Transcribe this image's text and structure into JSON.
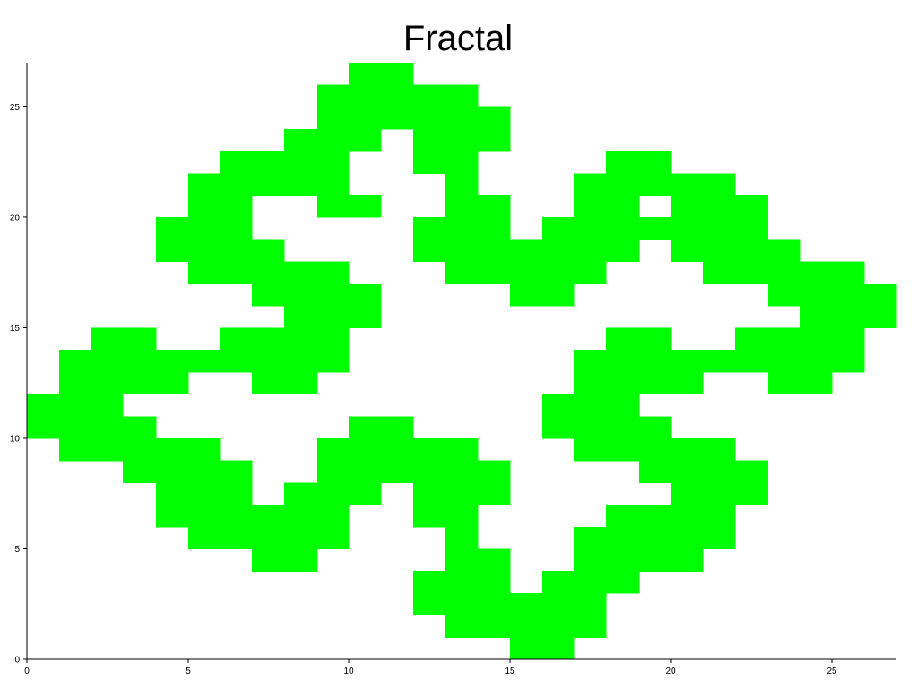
{
  "chart_data": {
    "type": "heatmap",
    "title": "Fractal",
    "xlabel": "",
    "ylabel": "",
    "xlim": [
      0,
      27
    ],
    "ylim": [
      0,
      27
    ],
    "x_ticks": [
      0,
      5,
      10,
      15,
      20,
      25
    ],
    "y_ticks": [
      0,
      5,
      10,
      15,
      20,
      25
    ],
    "x_tick_labels": [
      "0",
      "5",
      "10",
      "15",
      "20",
      "25"
    ],
    "y_tick_labels": [
      "0",
      "5",
      "10",
      "15",
      "20",
      "25"
    ],
    "grid": false,
    "fill_color": "#00ff00",
    "filled_cells": [
      [
        15,
        0
      ],
      [
        16,
        0
      ],
      [
        13,
        1
      ],
      [
        14,
        1
      ],
      [
        15,
        1
      ],
      [
        16,
        1
      ],
      [
        17,
        1
      ],
      [
        12,
        2
      ],
      [
        13,
        2
      ],
      [
        14,
        2
      ],
      [
        15,
        2
      ],
      [
        16,
        2
      ],
      [
        17,
        2
      ],
      [
        12,
        3
      ],
      [
        13,
        3
      ],
      [
        14,
        3
      ],
      [
        16,
        3
      ],
      [
        17,
        3
      ],
      [
        18,
        3
      ],
      [
        7,
        4
      ],
      [
        8,
        4
      ],
      [
        13,
        4
      ],
      [
        14,
        4
      ],
      [
        17,
        4
      ],
      [
        18,
        4
      ],
      [
        19,
        4
      ],
      [
        20,
        4
      ],
      [
        5,
        5
      ],
      [
        6,
        5
      ],
      [
        7,
        5
      ],
      [
        8,
        5
      ],
      [
        9,
        5
      ],
      [
        13,
        5
      ],
      [
        17,
        5
      ],
      [
        18,
        5
      ],
      [
        19,
        5
      ],
      [
        20,
        5
      ],
      [
        21,
        5
      ],
      [
        4,
        6
      ],
      [
        5,
        6
      ],
      [
        6,
        6
      ],
      [
        7,
        6
      ],
      [
        8,
        6
      ],
      [
        9,
        6
      ],
      [
        12,
        6
      ],
      [
        13,
        6
      ],
      [
        18,
        6
      ],
      [
        19,
        6
      ],
      [
        20,
        6
      ],
      [
        21,
        6
      ],
      [
        4,
        7
      ],
      [
        5,
        7
      ],
      [
        6,
        7
      ],
      [
        8,
        7
      ],
      [
        9,
        7
      ],
      [
        10,
        7
      ],
      [
        12,
        7
      ],
      [
        13,
        7
      ],
      [
        14,
        7
      ],
      [
        20,
        7
      ],
      [
        21,
        7
      ],
      [
        22,
        7
      ],
      [
        3,
        8
      ],
      [
        4,
        8
      ],
      [
        5,
        8
      ],
      [
        6,
        8
      ],
      [
        9,
        8
      ],
      [
        10,
        8
      ],
      [
        11,
        8
      ],
      [
        12,
        8
      ],
      [
        13,
        8
      ],
      [
        14,
        8
      ],
      [
        19,
        8
      ],
      [
        20,
        8
      ],
      [
        21,
        8
      ],
      [
        22,
        8
      ],
      [
        1,
        9
      ],
      [
        2,
        9
      ],
      [
        3,
        9
      ],
      [
        4,
        9
      ],
      [
        5,
        9
      ],
      [
        9,
        9
      ],
      [
        10,
        9
      ],
      [
        11,
        9
      ],
      [
        12,
        9
      ],
      [
        13,
        9
      ],
      [
        17,
        9
      ],
      [
        18,
        9
      ],
      [
        19,
        9
      ],
      [
        20,
        9
      ],
      [
        21,
        9
      ],
      [
        0,
        10
      ],
      [
        1,
        10
      ],
      [
        2,
        10
      ],
      [
        3,
        10
      ],
      [
        10,
        10
      ],
      [
        11,
        10
      ],
      [
        16,
        10
      ],
      [
        17,
        10
      ],
      [
        18,
        10
      ],
      [
        19,
        10
      ],
      [
        0,
        11
      ],
      [
        1,
        11
      ],
      [
        2,
        11
      ],
      [
        16,
        11
      ],
      [
        17,
        11
      ],
      [
        18,
        11
      ],
      [
        1,
        12
      ],
      [
        2,
        12
      ],
      [
        3,
        12
      ],
      [
        4,
        12
      ],
      [
        7,
        12
      ],
      [
        8,
        12
      ],
      [
        17,
        12
      ],
      [
        18,
        12
      ],
      [
        19,
        12
      ],
      [
        20,
        12
      ],
      [
        23,
        12
      ],
      [
        24,
        12
      ],
      [
        1,
        13
      ],
      [
        2,
        13
      ],
      [
        3,
        13
      ],
      [
        4,
        13
      ],
      [
        5,
        13
      ],
      [
        6,
        13
      ],
      [
        7,
        13
      ],
      [
        8,
        13
      ],
      [
        9,
        13
      ],
      [
        17,
        13
      ],
      [
        18,
        13
      ],
      [
        19,
        13
      ],
      [
        20,
        13
      ],
      [
        21,
        13
      ],
      [
        22,
        13
      ],
      [
        23,
        13
      ],
      [
        24,
        13
      ],
      [
        25,
        13
      ],
      [
        2,
        14
      ],
      [
        3,
        14
      ],
      [
        6,
        14
      ],
      [
        7,
        14
      ],
      [
        8,
        14
      ],
      [
        9,
        14
      ],
      [
        18,
        14
      ],
      [
        19,
        14
      ],
      [
        22,
        14
      ],
      [
        23,
        14
      ],
      [
        24,
        14
      ],
      [
        25,
        14
      ],
      [
        8,
        15
      ],
      [
        9,
        15
      ],
      [
        10,
        15
      ],
      [
        24,
        15
      ],
      [
        25,
        15
      ],
      [
        26,
        15
      ],
      [
        7,
        16
      ],
      [
        8,
        16
      ],
      [
        9,
        16
      ],
      [
        10,
        16
      ],
      [
        15,
        16
      ],
      [
        16,
        16
      ],
      [
        23,
        16
      ],
      [
        24,
        16
      ],
      [
        25,
        16
      ],
      [
        26,
        16
      ],
      [
        5,
        17
      ],
      [
        6,
        17
      ],
      [
        7,
        17
      ],
      [
        8,
        17
      ],
      [
        9,
        17
      ],
      [
        13,
        17
      ],
      [
        14,
        17
      ],
      [
        15,
        17
      ],
      [
        16,
        17
      ],
      [
        17,
        17
      ],
      [
        21,
        17
      ],
      [
        22,
        17
      ],
      [
        23,
        17
      ],
      [
        24,
        17
      ],
      [
        25,
        17
      ],
      [
        4,
        18
      ],
      [
        5,
        18
      ],
      [
        6,
        18
      ],
      [
        7,
        18
      ],
      [
        12,
        18
      ],
      [
        13,
        18
      ],
      [
        14,
        18
      ],
      [
        15,
        18
      ],
      [
        16,
        18
      ],
      [
        17,
        18
      ],
      [
        18,
        18
      ],
      [
        20,
        18
      ],
      [
        21,
        18
      ],
      [
        22,
        18
      ],
      [
        23,
        18
      ],
      [
        4,
        19
      ],
      [
        5,
        19
      ],
      [
        6,
        19
      ],
      [
        12,
        19
      ],
      [
        13,
        19
      ],
      [
        14,
        19
      ],
      [
        16,
        19
      ],
      [
        17,
        19
      ],
      [
        18,
        19
      ],
      [
        19,
        19
      ],
      [
        20,
        19
      ],
      [
        21,
        19
      ],
      [
        22,
        19
      ],
      [
        5,
        20
      ],
      [
        6,
        20
      ],
      [
        9,
        20
      ],
      [
        10,
        20
      ],
      [
        13,
        20
      ],
      [
        14,
        20
      ],
      [
        17,
        20
      ],
      [
        18,
        20
      ],
      [
        20,
        20
      ],
      [
        21,
        20
      ],
      [
        22,
        20
      ],
      [
        5,
        21
      ],
      [
        6,
        21
      ],
      [
        7,
        21
      ],
      [
        8,
        21
      ],
      [
        9,
        21
      ],
      [
        13,
        21
      ],
      [
        17,
        21
      ],
      [
        18,
        21
      ],
      [
        19,
        21
      ],
      [
        20,
        21
      ],
      [
        21,
        21
      ],
      [
        6,
        22
      ],
      [
        7,
        22
      ],
      [
        8,
        22
      ],
      [
        9,
        22
      ],
      [
        12,
        22
      ],
      [
        13,
        22
      ],
      [
        18,
        22
      ],
      [
        19,
        22
      ],
      [
        8,
        23
      ],
      [
        9,
        23
      ],
      [
        10,
        23
      ],
      [
        12,
        23
      ],
      [
        13,
        23
      ],
      [
        14,
        23
      ],
      [
        9,
        24
      ],
      [
        10,
        24
      ],
      [
        11,
        24
      ],
      [
        12,
        24
      ],
      [
        13,
        24
      ],
      [
        14,
        24
      ],
      [
        9,
        25
      ],
      [
        10,
        25
      ],
      [
        11,
        25
      ],
      [
        12,
        25
      ],
      [
        13,
        25
      ],
      [
        10,
        26
      ],
      [
        11,
        26
      ]
    ]
  }
}
